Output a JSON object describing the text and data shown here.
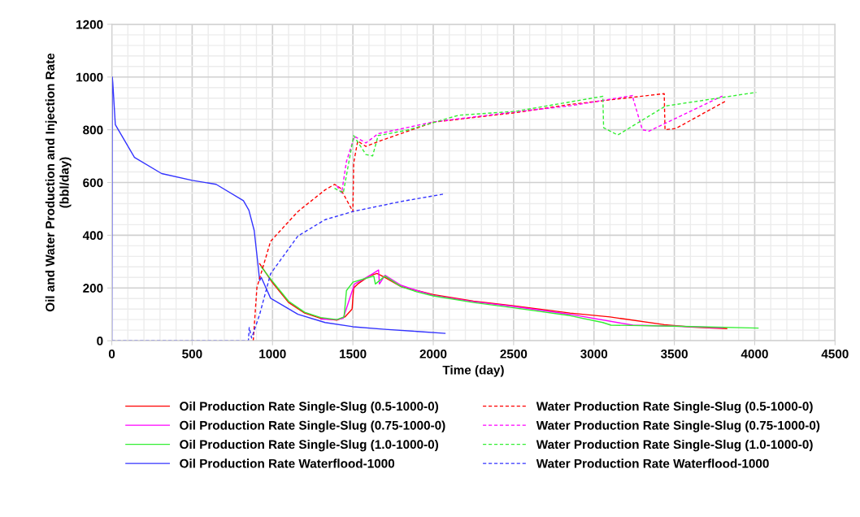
{
  "chart_data": {
    "type": "line",
    "xlabel": "Time (day)",
    "ylabel": "Oil and Water Production and Injection Rate\n(bbl/day)",
    "xlim": [
      0,
      4500
    ],
    "xticks": [
      0,
      500,
      1000,
      1500,
      2000,
      2500,
      3000,
      3500,
      4000,
      4500
    ],
    "ylim": [
      0,
      1200
    ],
    "yticks": [
      0,
      200,
      400,
      600,
      800,
      1000,
      1200
    ],
    "grid": true,
    "legend": "bottom",
    "marker": "none",
    "series": [
      {
        "name": "Oil Production Rate Single-Slug (0.5-1000-0)",
        "color": "#ff0000",
        "line_style": "solid",
        "x": [
          920,
          1000,
          1100,
          1200,
          1300,
          1400,
          1450,
          1495,
          1505,
          1530,
          1600,
          1650,
          1700,
          1800,
          1900,
          2000,
          2250,
          2500,
          2852,
          3100,
          3437,
          3600,
          3826
        ],
        "values": [
          292,
          220,
          145,
          105,
          85,
          78,
          90,
          120,
          200,
          215,
          245,
          255,
          240,
          205,
          190,
          175,
          150,
          132,
          105,
          90,
          61,
          52,
          46
        ]
      },
      {
        "name": "Oil Production Rate Single-Slug (0.75-1000-0)",
        "color": "#ff00ff",
        "line_style": "solid",
        "x": [
          1300,
          1400,
          1440,
          1480,
          1510,
          1600,
          1660,
          1665,
          1700,
          1800,
          1900,
          2000,
          2250,
          2500,
          2852,
          3242,
          3500,
          3799
        ],
        "values": [
          82,
          80,
          85,
          160,
          215,
          245,
          268,
          215,
          248,
          210,
          190,
          172,
          148,
          130,
          100,
          59,
          55,
          49
        ]
      },
      {
        "name": "Oil Production Rate Single-Slug (1.0-1000-0)",
        "color": "#33ee33",
        "line_style": "solid",
        "x": [
          930,
          1000,
          1100,
          1200,
          1300,
          1400,
          1445,
          1460,
          1500,
          1600,
          1630,
          1640,
          1700,
          1800,
          1900,
          2000,
          2250,
          2500,
          2852,
          3055,
          3106,
          3500,
          4021
        ],
        "values": [
          280,
          225,
          150,
          108,
          88,
          80,
          90,
          190,
          222,
          240,
          245,
          215,
          245,
          205,
          185,
          170,
          145,
          125,
          95,
          69,
          59,
          55,
          48
        ]
      },
      {
        "name": "Oil Production Rate Waterflood-1000",
        "color": "#3333ff",
        "line_style": "solid",
        "x": [
          0,
          3,
          6,
          22,
          141,
          310,
          500,
          649,
          819,
          853,
          886,
          912,
          920,
          930,
          988,
          1158,
          1327,
          1500,
          1700,
          1900,
          2073
        ],
        "values": [
          0,
          1000,
          980,
          819,
          695,
          634,
          608,
          593,
          531,
          495,
          418,
          274,
          228,
          240,
          161,
          100,
          69,
          53,
          43,
          35,
          28
        ]
      },
      {
        "name": "Water Production Rate Single-Slug (0.5-1000-0)",
        "color": "#ff0000",
        "line_style": "dashed",
        "x": [
          880,
          903,
          988,
          1158,
          1327,
          1386,
          1420,
          1500,
          1505,
          1530,
          1581,
          1665,
          2004,
          2513,
          2852,
          3437,
          3442,
          3510,
          3826
        ],
        "values": [
          0,
          202,
          377,
          490,
          572,
          593,
          580,
          490,
          675,
          757,
          737,
          757,
          829,
          865,
          896,
          937,
          800,
          805,
          911
        ]
      },
      {
        "name": "Water Production Rate Single-Slug (0.75-1000-0)",
        "color": "#ff00ff",
        "line_style": "dashed",
        "x": [
          1400,
          1430,
          1460,
          1510,
          1581,
          1657,
          2004,
          2513,
          2852,
          3242,
          3245,
          3301,
          3343,
          3799
        ],
        "values": [
          588,
          560,
          680,
          775,
          750,
          785,
          830,
          868,
          891,
          930,
          915,
          800,
          795,
          928
        ]
      },
      {
        "name": "Water Production Rate Single-Slug (1.0-1000-0)",
        "color": "#33ee33",
        "line_style": "dashed",
        "x": [
          1386,
          1440,
          1505,
          1581,
          1623,
          1657,
          1835,
          2157,
          2513,
          3055,
          3060,
          3148,
          3445,
          4010
        ],
        "values": [
          578,
          560,
          778,
          706,
          701,
          778,
          798,
          855,
          870,
          927,
          808,
          780,
          890,
          942
        ]
      },
      {
        "name": "Water Production Rate Waterflood-1000",
        "color": "#3333ff",
        "line_style": "dashed",
        "x": [
          0,
          850,
          855,
          870,
          920,
          988,
          1158,
          1327,
          1500,
          1800,
          2073
        ],
        "values": [
          0,
          0,
          50,
          10,
          100,
          254,
          397,
          459,
          490,
          528,
          557
        ]
      }
    ]
  }
}
